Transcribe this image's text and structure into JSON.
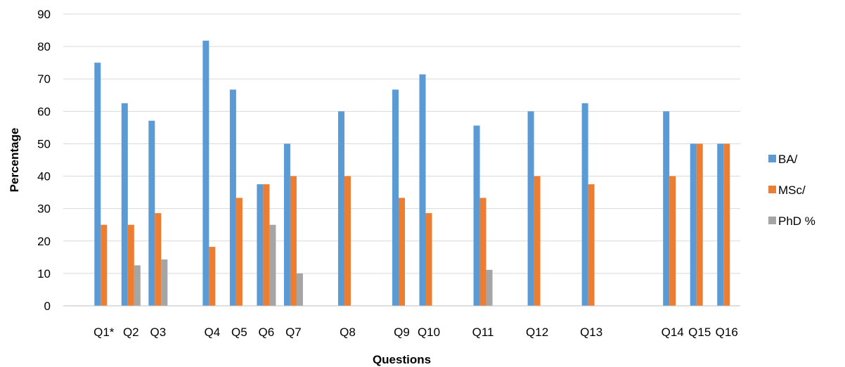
{
  "chart_data": {
    "type": "bar",
    "title": "",
    "xlabel": "Questions",
    "ylabel": "Percentage",
    "ylim": [
      0,
      90
    ],
    "yticks": [
      0,
      10,
      20,
      30,
      40,
      50,
      60,
      70,
      80,
      90
    ],
    "grid": true,
    "legend_position": "right",
    "categories": [
      "Q1*",
      "Q2",
      "Q3",
      "Q4",
      "Q5",
      "Q6",
      "Q7",
      "Q8",
      "Q9",
      "Q10",
      "Q11",
      "Q12",
      "Q13",
      "Q14",
      "Q15",
      "Q16"
    ],
    "category_slots": [
      1,
      2,
      3,
      5,
      6,
      7,
      8,
      10,
      12,
      13,
      15,
      17,
      19,
      22,
      23,
      24
    ],
    "slot_count": 25,
    "series": [
      {
        "name": "BA/",
        "color": "#5B9BD5",
        "values": [
          75,
          62.5,
          57.1,
          81.8,
          66.7,
          37.5,
          50,
          60,
          66.7,
          71.4,
          55.6,
          60,
          62.5,
          60,
          50,
          50
        ]
      },
      {
        "name": "MSc/",
        "color": "#ED7D31",
        "values": [
          25,
          25,
          28.6,
          18.2,
          33.3,
          37.5,
          40,
          40,
          33.3,
          28.6,
          33.3,
          40,
          37.5,
          40,
          50,
          50
        ]
      },
      {
        "name": "PhD %",
        "color": "#A5A5A5",
        "values": [
          0,
          12.5,
          14.3,
          0,
          0,
          25,
          10,
          0,
          0,
          0,
          11.1,
          0,
          0,
          0,
          0,
          0
        ]
      }
    ]
  }
}
